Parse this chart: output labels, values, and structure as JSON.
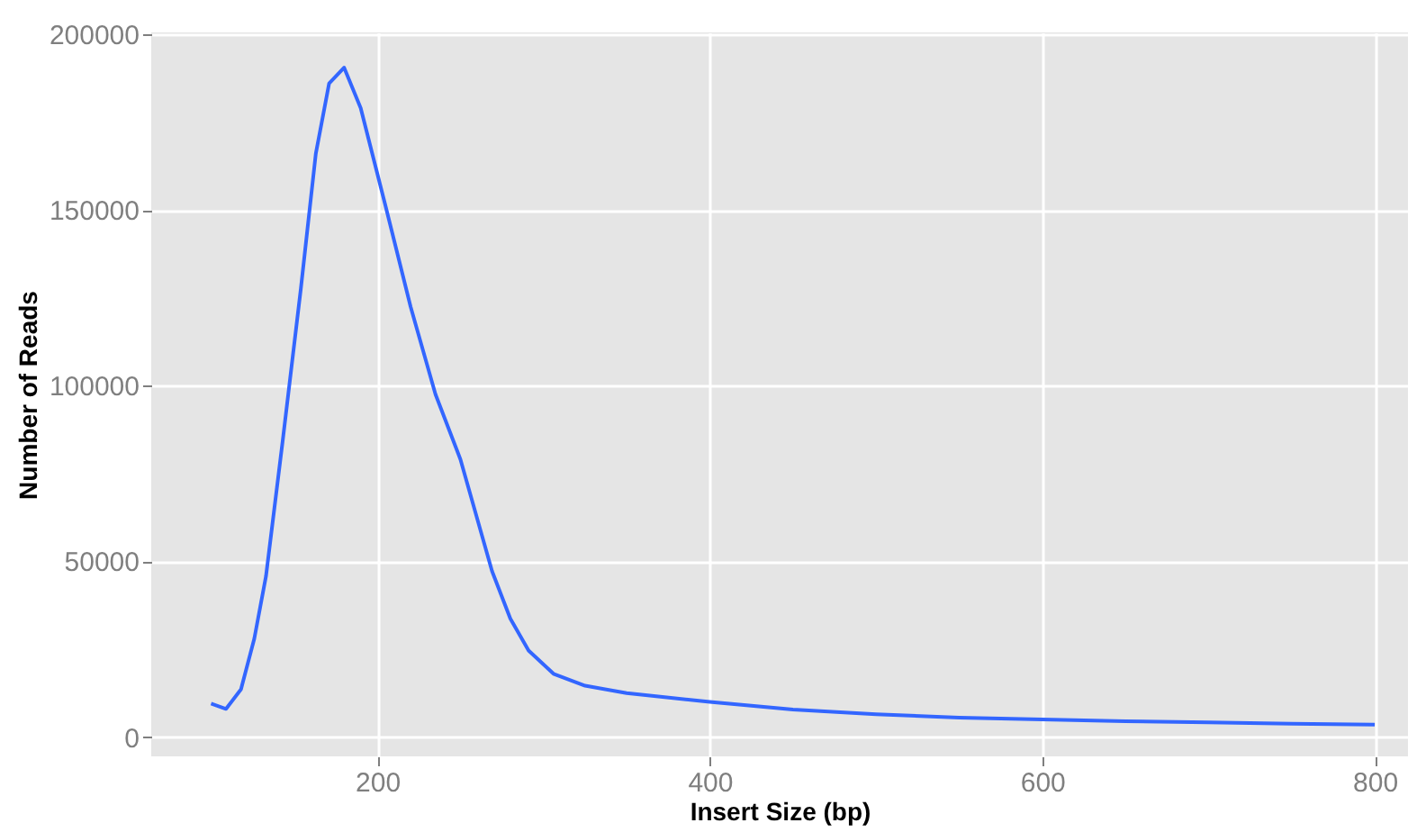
{
  "chart_data": {
    "type": "line",
    "xlabel": "Insert Size (bp)",
    "ylabel": "Number of Reads",
    "x": [
      100,
      109,
      118,
      126,
      133,
      143,
      154,
      163,
      171,
      180,
      190,
      205,
      220,
      235,
      250,
      269,
      280,
      291,
      306,
      325,
      350,
      400,
      450,
      500,
      550,
      600,
      650,
      700,
      750,
      800
    ],
    "series": [
      {
        "color": "#3366ff",
        "values": [
          9500,
          8000,
          13600,
          28000,
          45700,
          84000,
          127600,
          166000,
          186000,
          190500,
          179000,
          151000,
          122500,
          97500,
          79000,
          47200,
          33700,
          24600,
          18000,
          14600,
          12500,
          10000,
          7800,
          6500,
          5500,
          5000,
          4500,
          4200,
          3800,
          3500
        ]
      }
    ],
    "xlim": [
      64,
      820
    ],
    "xticks": [
      200,
      400,
      600,
      800
    ],
    "ylim": [
      -5500,
      200500
    ],
    "yticks": [
      0,
      50000,
      100000,
      150000,
      200000
    ],
    "grid": true,
    "marker": "none",
    "line_style": "solid"
  }
}
